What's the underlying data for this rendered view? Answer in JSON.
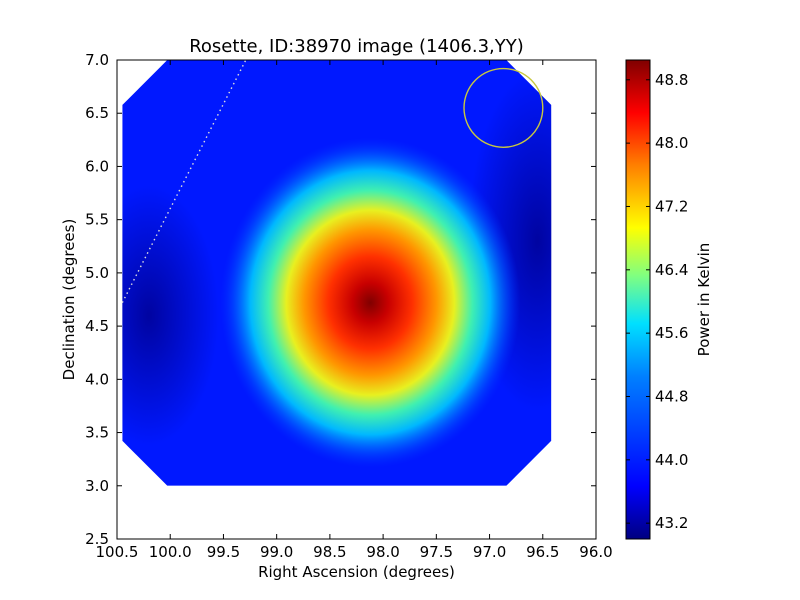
{
  "chart_data": {
    "type": "heatmap",
    "title": "Rosette, ID:38970 image (1406.3,YY)",
    "xlabel": "Right Ascension (degrees)",
    "ylabel": "Declination (degrees)",
    "xlim": [
      100.5,
      96.0
    ],
    "ylim": [
      2.5,
      7.0
    ],
    "x_ticks": [
      "100.5",
      "100.0",
      "99.5",
      "99.0",
      "98.5",
      "98.0",
      "97.5",
      "97.0",
      "96.5",
      "96.0"
    ],
    "y_ticks": [
      "2.5",
      "3.0",
      "3.5",
      "4.0",
      "4.5",
      "5.0",
      "5.5",
      "6.0",
      "6.5",
      "7.0"
    ],
    "colorbar": {
      "label": "Power in Kelvin",
      "range": [
        43.0,
        49.05
      ],
      "ticks": [
        "43.2",
        "44.0",
        "44.8",
        "45.6",
        "46.4",
        "47.2",
        "48.0",
        "48.8"
      ],
      "colormap": "jet"
    },
    "map_extent": {
      "ra": [
        100.45,
        96.42
      ],
      "dec": [
        3.0,
        7.0
      ]
    },
    "peak": {
      "ra": 98.12,
      "dec": 4.72,
      "value": 48.9
    },
    "background_value": 43.6,
    "circle_marker": {
      "ra": 96.87,
      "dec": 6.55,
      "radius_deg": 0.37,
      "color": "#c8c840"
    },
    "dotted_line": {
      "ra": [
        100.45,
        99.29
      ],
      "dec": [
        4.72,
        7.0
      ],
      "color": "#dddddd"
    }
  }
}
